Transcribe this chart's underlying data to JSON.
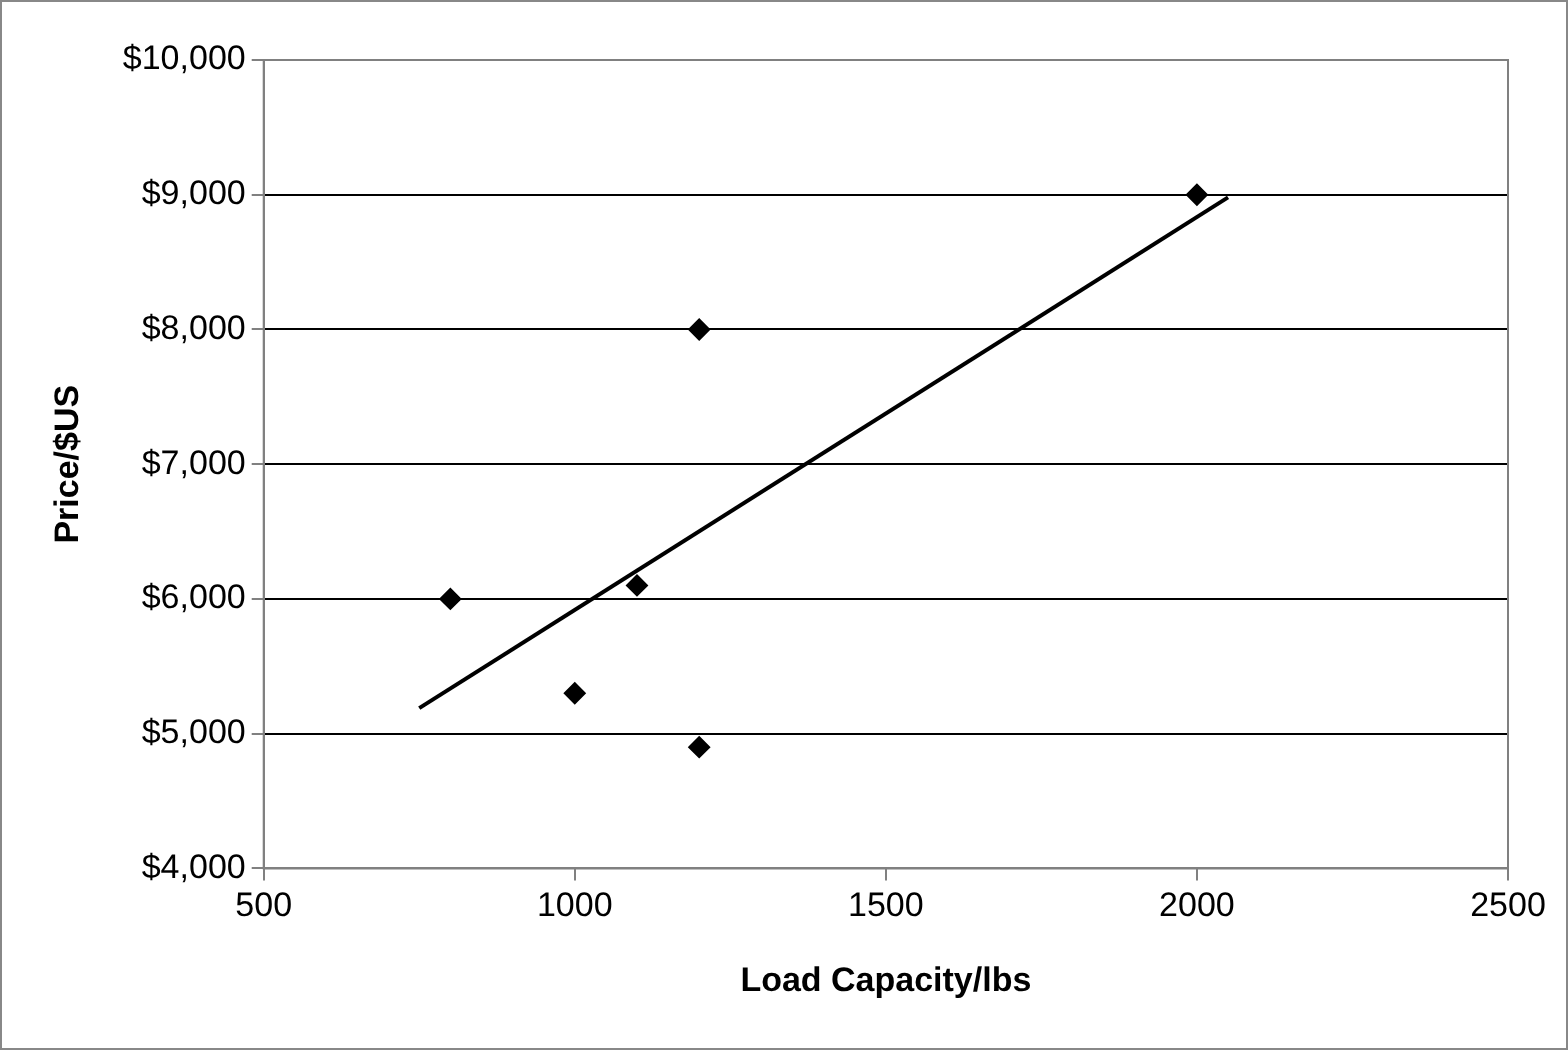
{
  "chart_data": {
    "type": "scatter",
    "xlabel": "Load Capacity/lbs",
    "ylabel": "Price/$US",
    "x": [
      800,
      1000,
      1100,
      1200,
      1200,
      2000
    ],
    "series": [
      {
        "color": "#000000",
        "values": [
          6000,
          5300,
          6100,
          8000,
          4900,
          9000
        ]
      },
      {
        "type": "line",
        "marker": "none",
        "color": "#000000",
        "x": [
          750,
          2050
        ],
        "values": [
          5190,
          8980
        ]
      }
    ],
    "xlim": [
      500,
      2500
    ],
    "xticks": [
      500,
      1000,
      1500,
      2000,
      2500
    ],
    "ylim": [
      4000,
      10000
    ],
    "yticks": [
      {
        "value": 4000,
        "label": "$4,000"
      },
      {
        "value": 5000,
        "label": "$5,000"
      },
      {
        "value": 6000,
        "label": "$6,000"
      },
      {
        "value": 7000,
        "label": "$7,000"
      },
      {
        "value": 8000,
        "label": "$8,000"
      },
      {
        "value": 9000,
        "label": "$9,000"
      },
      {
        "value": 10000,
        "label": "$10,000"
      }
    ],
    "grid": "y",
    "marker": "diamond",
    "legend": false
  }
}
